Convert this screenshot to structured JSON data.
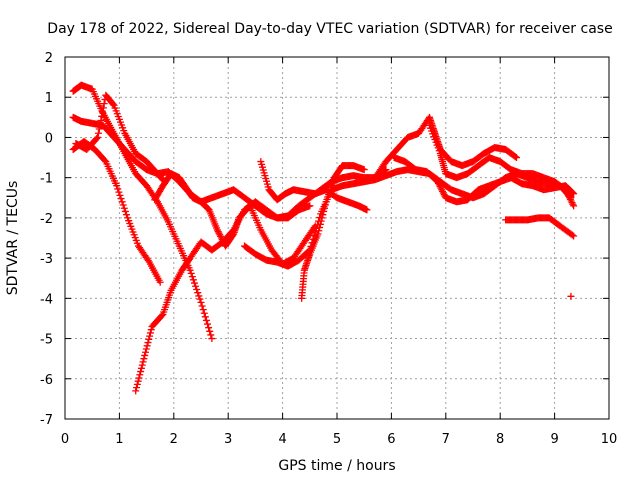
{
  "chart_data": {
    "type": "scatter",
    "title": "Day 178 of 2022, Sidereal Day-to-day VTEC variation (SDTVAR) for receiver case",
    "xlabel": "GPS time / hours",
    "ylabel": "SDTVAR / TECUs",
    "xlim": [
      0,
      10
    ],
    "ylim": [
      -7,
      2
    ],
    "x_ticks": [
      "0",
      "1",
      "2",
      "3",
      "4",
      "5",
      "6",
      "7",
      "8",
      "9",
      "10"
    ],
    "y_ticks": [
      "2",
      "1",
      "0",
      "-1",
      "-2",
      "-3",
      "-4",
      "-5",
      "-6",
      "-7"
    ],
    "grid": true,
    "marker": "+",
    "color": "#ff0000",
    "series": [
      {
        "points": [
          [
            0.15,
            1.15
          ],
          [
            0.3,
            1.3
          ],
          [
            0.5,
            1.2
          ],
          [
            0.7,
            0.6
          ],
          [
            0.9,
            0.1
          ],
          [
            1.1,
            -0.4
          ],
          [
            1.3,
            -0.9
          ],
          [
            1.5,
            -1.2
          ],
          [
            1.7,
            -1.6
          ],
          [
            1.9,
            -2.1
          ],
          [
            2.1,
            -2.7
          ],
          [
            2.3,
            -3.3
          ],
          [
            2.5,
            -4.1
          ],
          [
            2.7,
            -5.0
          ]
        ]
      },
      {
        "points": [
          [
            0.15,
            -0.3
          ],
          [
            0.35,
            -0.1
          ],
          [
            0.55,
            -0.3
          ],
          [
            0.75,
            -0.6
          ],
          [
            0.95,
            -1.2
          ],
          [
            1.15,
            -2.0
          ],
          [
            1.35,
            -2.7
          ],
          [
            1.55,
            -3.1
          ],
          [
            1.75,
            -3.6
          ]
        ]
      },
      {
        "points": [
          [
            0.15,
            0.5
          ],
          [
            0.3,
            0.4
          ],
          [
            0.5,
            0.35
          ],
          [
            0.7,
            0.3
          ],
          [
            0.9,
            0.0
          ],
          [
            1.1,
            -0.3
          ],
          [
            1.3,
            -0.6
          ],
          [
            1.5,
            -0.8
          ],
          [
            1.7,
            -0.9
          ],
          [
            1.9,
            -0.85
          ],
          [
            2.1,
            -1.1
          ],
          [
            2.3,
            -1.4
          ],
          [
            2.5,
            -1.6
          ],
          [
            2.7,
            -1.5
          ],
          [
            2.9,
            -1.4
          ],
          [
            3.1,
            -1.3
          ],
          [
            3.3,
            -1.5
          ],
          [
            3.5,
            -1.7
          ],
          [
            3.7,
            -1.9
          ],
          [
            3.9,
            -2.0
          ],
          [
            4.1,
            -1.95
          ],
          [
            4.3,
            -1.7
          ],
          [
            4.5,
            -1.5
          ],
          [
            4.7,
            -1.3
          ],
          [
            4.9,
            -1.1
          ],
          [
            5.1,
            -1.0
          ],
          [
            5.3,
            -0.95
          ],
          [
            5.5,
            -1.0
          ],
          [
            5.7,
            -1.0
          ],
          [
            5.9,
            -0.8
          ]
        ]
      },
      {
        "points": [
          [
            0.2,
            -0.15
          ],
          [
            0.4,
            -0.3
          ],
          [
            0.6,
            0.0
          ],
          [
            0.75,
            1.05
          ],
          [
            0.9,
            0.8
          ],
          [
            1.1,
            0.1
          ],
          [
            1.3,
            -0.4
          ],
          [
            1.5,
            -0.6
          ],
          [
            1.7,
            -0.9
          ],
          [
            1.8,
            -1.05
          ]
        ]
      },
      {
        "points": [
          [
            1.3,
            -6.3
          ],
          [
            1.45,
            -5.5
          ],
          [
            1.6,
            -4.7
          ],
          [
            1.8,
            -4.4
          ],
          [
            1.95,
            -3.8
          ],
          [
            2.15,
            -3.3
          ],
          [
            2.3,
            -3.0
          ],
          [
            2.5,
            -2.6
          ],
          [
            2.7,
            -2.8
          ],
          [
            2.9,
            -2.6
          ],
          [
            3.1,
            -2.3
          ],
          [
            3.3,
            -1.8
          ],
          [
            3.5,
            -1.6
          ],
          [
            3.7,
            -1.8
          ],
          [
            3.9,
            -2.0
          ],
          [
            4.1,
            -2.0
          ],
          [
            4.3,
            -1.8
          ],
          [
            4.5,
            -1.7
          ]
        ]
      },
      {
        "points": [
          [
            1.65,
            -1.55
          ],
          [
            1.8,
            -1.2
          ],
          [
            1.95,
            -0.9
          ],
          [
            2.1,
            -1.0
          ],
          [
            2.25,
            -1.3
          ],
          [
            2.35,
            -1.5
          ],
          [
            2.5,
            -1.6
          ],
          [
            2.65,
            -1.8
          ],
          [
            2.8,
            -2.3
          ],
          [
            2.95,
            -2.7
          ],
          [
            3.1,
            -2.4
          ],
          [
            3.2,
            -2.0
          ],
          [
            3.4,
            -1.7
          ],
          [
            3.6,
            -2.3
          ],
          [
            3.8,
            -2.8
          ],
          [
            4.0,
            -3.15
          ],
          [
            4.2,
            -3.0
          ],
          [
            4.4,
            -2.6
          ],
          [
            4.6,
            -2.2
          ]
        ]
      },
      {
        "points": [
          [
            3.6,
            -0.6
          ],
          [
            3.75,
            -1.3
          ],
          [
            3.9,
            -1.55
          ],
          [
            4.05,
            -1.4
          ],
          [
            4.2,
            -1.3
          ],
          [
            4.4,
            -1.35
          ],
          [
            4.6,
            -1.4
          ],
          [
            4.8,
            -1.3
          ],
          [
            5.0,
            -1.5
          ],
          [
            5.2,
            -1.6
          ],
          [
            5.4,
            -1.7
          ],
          [
            5.55,
            -1.8
          ]
        ]
      },
      {
        "points": [
          [
            4.35,
            -4.0
          ],
          [
            4.4,
            -3.3
          ],
          [
            4.5,
            -2.9
          ],
          [
            4.65,
            -2.4
          ],
          [
            4.8,
            -1.6
          ],
          [
            4.95,
            -1.0
          ],
          [
            5.1,
            -0.7
          ],
          [
            5.3,
            -0.7
          ],
          [
            5.5,
            -0.8
          ]
        ]
      },
      {
        "points": [
          [
            3.3,
            -2.7
          ],
          [
            3.5,
            -2.9
          ],
          [
            3.7,
            -3.05
          ],
          [
            3.9,
            -3.1
          ],
          [
            4.1,
            -3.2
          ],
          [
            4.3,
            -3.05
          ],
          [
            4.5,
            -2.8
          ],
          [
            4.7,
            -1.9
          ],
          [
            4.9,
            -1.3
          ],
          [
            5.1,
            -1.2
          ],
          [
            5.3,
            -1.15
          ],
          [
            5.5,
            -1.1
          ],
          [
            5.7,
            -1.05
          ],
          [
            5.9,
            -0.95
          ],
          [
            6.1,
            -0.85
          ],
          [
            6.3,
            -0.8
          ],
          [
            6.5,
            -0.85
          ],
          [
            6.7,
            -0.9
          ],
          [
            6.9,
            -1.1
          ],
          [
            7.1,
            -1.3
          ],
          [
            7.3,
            -1.4
          ],
          [
            7.5,
            -1.5
          ],
          [
            7.7,
            -1.4
          ],
          [
            7.9,
            -1.2
          ],
          [
            8.1,
            -1.0
          ],
          [
            8.3,
            -0.9
          ],
          [
            8.5,
            -1.0
          ],
          [
            8.7,
            -1.1
          ],
          [
            8.9,
            -1.15
          ],
          [
            9.1,
            -1.2
          ],
          [
            9.3,
            -1.5
          ]
        ]
      },
      {
        "points": [
          [
            5.7,
            -1.0
          ],
          [
            5.9,
            -0.6
          ],
          [
            6.1,
            -0.3
          ],
          [
            6.3,
            0.0
          ],
          [
            6.5,
            0.1
          ],
          [
            6.7,
            0.5
          ],
          [
            6.8,
            0.1
          ],
          [
            6.9,
            -0.3
          ],
          [
            7.1,
            -0.6
          ],
          [
            7.3,
            -0.7
          ],
          [
            7.5,
            -0.6
          ],
          [
            7.7,
            -0.4
          ],
          [
            7.9,
            -0.25
          ],
          [
            8.1,
            -0.3
          ],
          [
            8.3,
            -0.5
          ]
        ]
      },
      {
        "points": [
          [
            6.05,
            -0.5
          ],
          [
            6.25,
            -0.6
          ],
          [
            6.45,
            -0.8
          ],
          [
            6.65,
            -0.85
          ],
          [
            6.85,
            -1.1
          ],
          [
            7.0,
            -1.5
          ],
          [
            7.2,
            -1.6
          ],
          [
            7.4,
            -1.55
          ],
          [
            7.6,
            -1.3
          ],
          [
            7.8,
            -1.2
          ],
          [
            8.0,
            -1.1
          ],
          [
            8.2,
            -1.0
          ],
          [
            8.4,
            -1.15
          ],
          [
            8.6,
            -1.2
          ],
          [
            8.8,
            -1.3
          ],
          [
            9.0,
            -1.25
          ],
          [
            9.2,
            -1.2
          ],
          [
            9.35,
            -1.4
          ]
        ]
      },
      {
        "points": [
          [
            6.7,
            0.3
          ],
          [
            6.9,
            -0.4
          ],
          [
            7.0,
            -0.9
          ],
          [
            7.2,
            -1.0
          ],
          [
            7.4,
            -0.9
          ],
          [
            7.6,
            -0.7
          ],
          [
            7.8,
            -0.5
          ],
          [
            8.0,
            -0.6
          ],
          [
            8.2,
            -0.8
          ],
          [
            8.4,
            -0.9
          ],
          [
            8.6,
            -0.9
          ],
          [
            8.8,
            -1.0
          ],
          [
            9.0,
            -1.1
          ],
          [
            9.2,
            -1.3
          ],
          [
            9.35,
            -1.7
          ]
        ]
      },
      {
        "points": [
          [
            8.1,
            -2.05
          ],
          [
            8.3,
            -2.05
          ],
          [
            8.5,
            -2.05
          ],
          [
            8.7,
            -2.0
          ],
          [
            8.9,
            -2.0
          ],
          [
            9.1,
            -2.2
          ],
          [
            9.35,
            -2.45
          ]
        ]
      },
      {
        "points": [
          [
            9.3,
            -3.95
          ]
        ]
      }
    ]
  }
}
